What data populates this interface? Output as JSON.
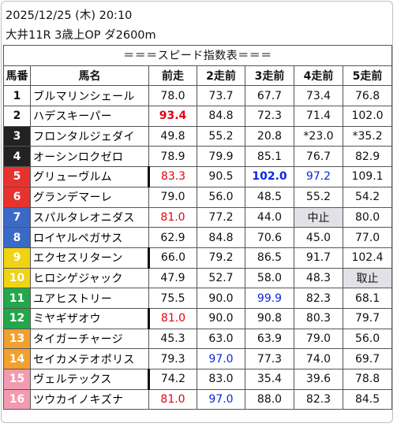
{
  "header": {
    "line1": "2025/12/25 (木) 20:10",
    "line2": "大井11R 3歳上OP ダ2600m"
  },
  "table": {
    "title": "＝＝＝スピード指数表＝＝＝",
    "columns": [
      "馬番",
      "馬名",
      "前走",
      "2走前",
      "3走前",
      "4走前",
      "5走前"
    ],
    "rows": [
      {
        "num": "1",
        "name": "ブルマリンシェール",
        "vals": [
          "78.0",
          "73.7",
          "67.7",
          "73.4",
          "76.8"
        ]
      },
      {
        "num": "2",
        "name": "ハデスキーパー",
        "vals": [
          "93.4",
          "84.8",
          "72.3",
          "71.4",
          "102.0"
        ]
      },
      {
        "num": "3",
        "name": "フロンタルジェダイ",
        "vals": [
          "49.8",
          "55.2",
          "20.8",
          "*23.0",
          "*35.2"
        ]
      },
      {
        "num": "4",
        "name": "オーシンロクゼロ",
        "vals": [
          "78.9",
          "79.9",
          "85.1",
          "76.7",
          "82.9"
        ]
      },
      {
        "num": "5",
        "name": "グリューヴルム",
        "vals": [
          "83.3",
          "90.5",
          "102.0",
          "97.2",
          "109.1"
        ]
      },
      {
        "num": "6",
        "name": "グランデマーレ",
        "vals": [
          "79.0",
          "56.0",
          "48.5",
          "55.2",
          "54.2"
        ]
      },
      {
        "num": "7",
        "name": "スパルタレオニダス",
        "vals": [
          "81.0",
          "77.2",
          "44.0",
          "中止",
          "80.0"
        ]
      },
      {
        "num": "8",
        "name": "ロイヤルペガサス",
        "vals": [
          "62.9",
          "84.8",
          "70.6",
          "45.0",
          "77.0"
        ]
      },
      {
        "num": "9",
        "name": "エクセスリターン",
        "vals": [
          "66.0",
          "79.2",
          "86.5",
          "91.7",
          "102.4"
        ]
      },
      {
        "num": "10",
        "name": "ヒロシゲジャック",
        "vals": [
          "47.9",
          "52.7",
          "58.0",
          "48.3",
          "取止"
        ]
      },
      {
        "num": "11",
        "name": "ユアヒストリー",
        "vals": [
          "75.5",
          "90.0",
          "99.9",
          "82.3",
          "68.1"
        ]
      },
      {
        "num": "12",
        "name": "ミヤギザオウ",
        "vals": [
          "81.0",
          "90.0",
          "90.8",
          "80.3",
          "79.7"
        ]
      },
      {
        "num": "13",
        "name": "タイガーチャージ",
        "vals": [
          "45.3",
          "63.0",
          "63.9",
          "79.0",
          "56.0"
        ]
      },
      {
        "num": "14",
        "name": "セイカメテオポリス",
        "vals": [
          "79.3",
          "97.0",
          "77.3",
          "74.0",
          "69.7"
        ]
      },
      {
        "num": "15",
        "name": "ヴェルテックス",
        "vals": [
          "74.2",
          "83.0",
          "35.4",
          "39.6",
          "78.8"
        ]
      },
      {
        "num": "16",
        "name": "ツウカイノキズナ",
        "vals": [
          "81.0",
          "97.0",
          "88.0",
          "82.3",
          "84.5"
        ]
      }
    ]
  },
  "styles": {
    "waku_colors": {
      "1": "#ffffff",
      "2": "#ffffff",
      "3": "#222222",
      "4": "#222222",
      "5": "#e8322d",
      "6": "#e8322d",
      "7": "#3a6ac6",
      "8": "#3a6ac6",
      "9": "#f0d312",
      "10": "#f0d312",
      "11": "#22a74a",
      "12": "#22a74a",
      "13": "#f2a02e",
      "14": "#f2a02e",
      "15": "#f29ab0",
      "16": "#f29ab0"
    },
    "num_text_colors": {
      "1": "#111111",
      "2": "#111111",
      "3": "#ffffff",
      "4": "#ffffff",
      "5": "#ffffff",
      "6": "#ffffff",
      "7": "#ffffff",
      "8": "#ffffff",
      "9": "#ffffff",
      "10": "#ffffff",
      "11": "#ffffff",
      "12": "#ffffff",
      "13": "#ffffff",
      "14": "#ffffff",
      "15": "#ffffff",
      "16": "#ffffff"
    },
    "red": "#e60012",
    "blue": "#0a27e0",
    "status_cell_bg": "#e2e2e6",
    "highlights": {
      "1-0": "red bold",
      "4-0": "red",
      "4-2": "blue bold",
      "4-3": "blue",
      "6-0": "red",
      "10-2": "blue",
      "11-0": "red",
      "13-1": "blue",
      "15-0": "red",
      "15-1": "blue"
    },
    "thick_name_border_rows": [
      4,
      8,
      11,
      14
    ]
  }
}
